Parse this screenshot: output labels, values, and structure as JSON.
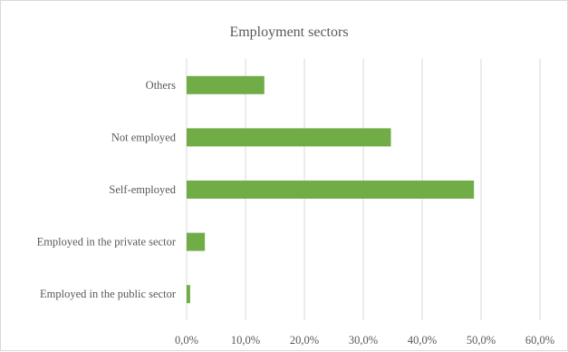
{
  "chart_data": {
    "type": "bar",
    "orientation": "horizontal",
    "title": "Employment sectors",
    "categories": [
      "Others",
      "Not employed",
      "Self-employed",
      "Employed in the private sector",
      "Employed in the public sector"
    ],
    "values": [
      13.2,
      34.7,
      48.8,
      3.1,
      0.6
    ],
    "unit": "%",
    "xlim": [
      0,
      60
    ],
    "xticks": [
      "0,0%",
      "10,0%",
      "20,0%",
      "30,0%",
      "40,0%",
      "50,0%",
      "60,0%"
    ],
    "grid": "vertical",
    "legend": "none",
    "bar_color": "#70ad47",
    "grid_color": "#d9d9d9"
  }
}
